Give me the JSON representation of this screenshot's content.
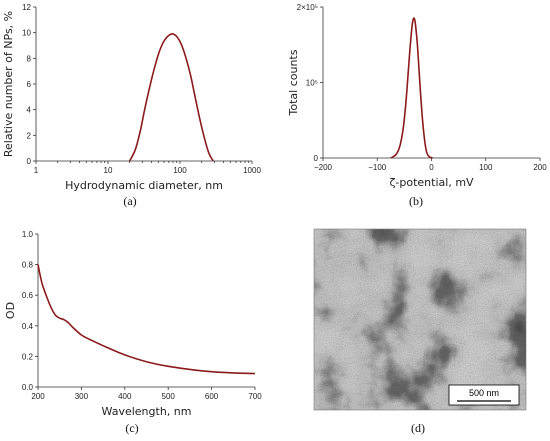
{
  "chart_data": [
    {
      "type": "line",
      "panel": "(a)",
      "xlabel": "Hydrodynamic diameter, nm",
      "ylabel": "Relative number of NPs, %",
      "xscale": "log",
      "xlim": [
        1,
        1000
      ],
      "ylim": [
        0,
        12
      ],
      "xticks": [
        "1",
        "10",
        "100",
        "1000"
      ],
      "yticks": [
        "0",
        "2",
        "4",
        "6",
        "8",
        "10",
        "12"
      ],
      "series": [
        {
          "x": [
            20,
            24,
            28,
            32,
            37,
            43,
            50,
            58,
            67,
            78,
            90,
            104,
            120,
            140,
            162,
            188,
            218,
            252,
            290
          ],
          "y": [
            0,
            0.9,
            2.3,
            3.9,
            5.5,
            7.0,
            8.3,
            9.2,
            9.7,
            9.9,
            9.7,
            9.1,
            8.1,
            6.7,
            5.0,
            3.3,
            1.8,
            0.6,
            0
          ]
        }
      ]
    },
    {
      "type": "line",
      "panel": "(b)",
      "xlabel": "ζ-potential, mV",
      "ylabel": "Total counts",
      "xlim": [
        -200,
        200
      ],
      "ylim": [
        0,
        240000
      ],
      "xticks": [
        "−200",
        "−100",
        "0",
        "100",
        "200"
      ],
      "yticks": [
        "0",
        "10⁵",
        "2×10⁵"
      ],
      "series": [
        {
          "x": [
            -75,
            -65,
            -58,
            -52,
            -47,
            -43,
            -40,
            -37,
            -35,
            -33,
            -31,
            -29,
            -26,
            -23,
            -20,
            -17,
            -14,
            -11,
            -8,
            -4,
            2
          ],
          "y": [
            0,
            6000,
            20000,
            48000,
            90000,
            135000,
            170000,
            200000,
            215000,
            222000,
            220000,
            208000,
            180000,
            140000,
            100000,
            65000,
            38000,
            18000,
            7000,
            2000,
            0
          ]
        }
      ]
    },
    {
      "type": "line",
      "panel": "(c)",
      "xlabel": "Wavelength, nm",
      "ylabel": "OD",
      "xlim": [
        200,
        700
      ],
      "ylim": [
        0,
        1.0
      ],
      "xticks": [
        "200",
        "300",
        "400",
        "500",
        "600",
        "700"
      ],
      "yticks": [
        "0.0",
        "0.2",
        "0.4",
        "0.6",
        "0.8",
        "1.0"
      ],
      "series": [
        {
          "x": [
            200,
            205,
            210,
            220,
            230,
            240,
            250,
            260,
            270,
            280,
            300,
            320,
            350,
            400,
            450,
            500,
            550,
            600,
            650,
            700
          ],
          "y": [
            0.8,
            0.73,
            0.67,
            0.59,
            0.52,
            0.47,
            0.45,
            0.44,
            0.42,
            0.39,
            0.34,
            0.31,
            0.27,
            0.21,
            0.165,
            0.135,
            0.115,
            0.1,
            0.092,
            0.088
          ]
        }
      ]
    }
  ],
  "image_panel": {
    "panel": "(d)",
    "scalebar_label": "500 nm"
  }
}
